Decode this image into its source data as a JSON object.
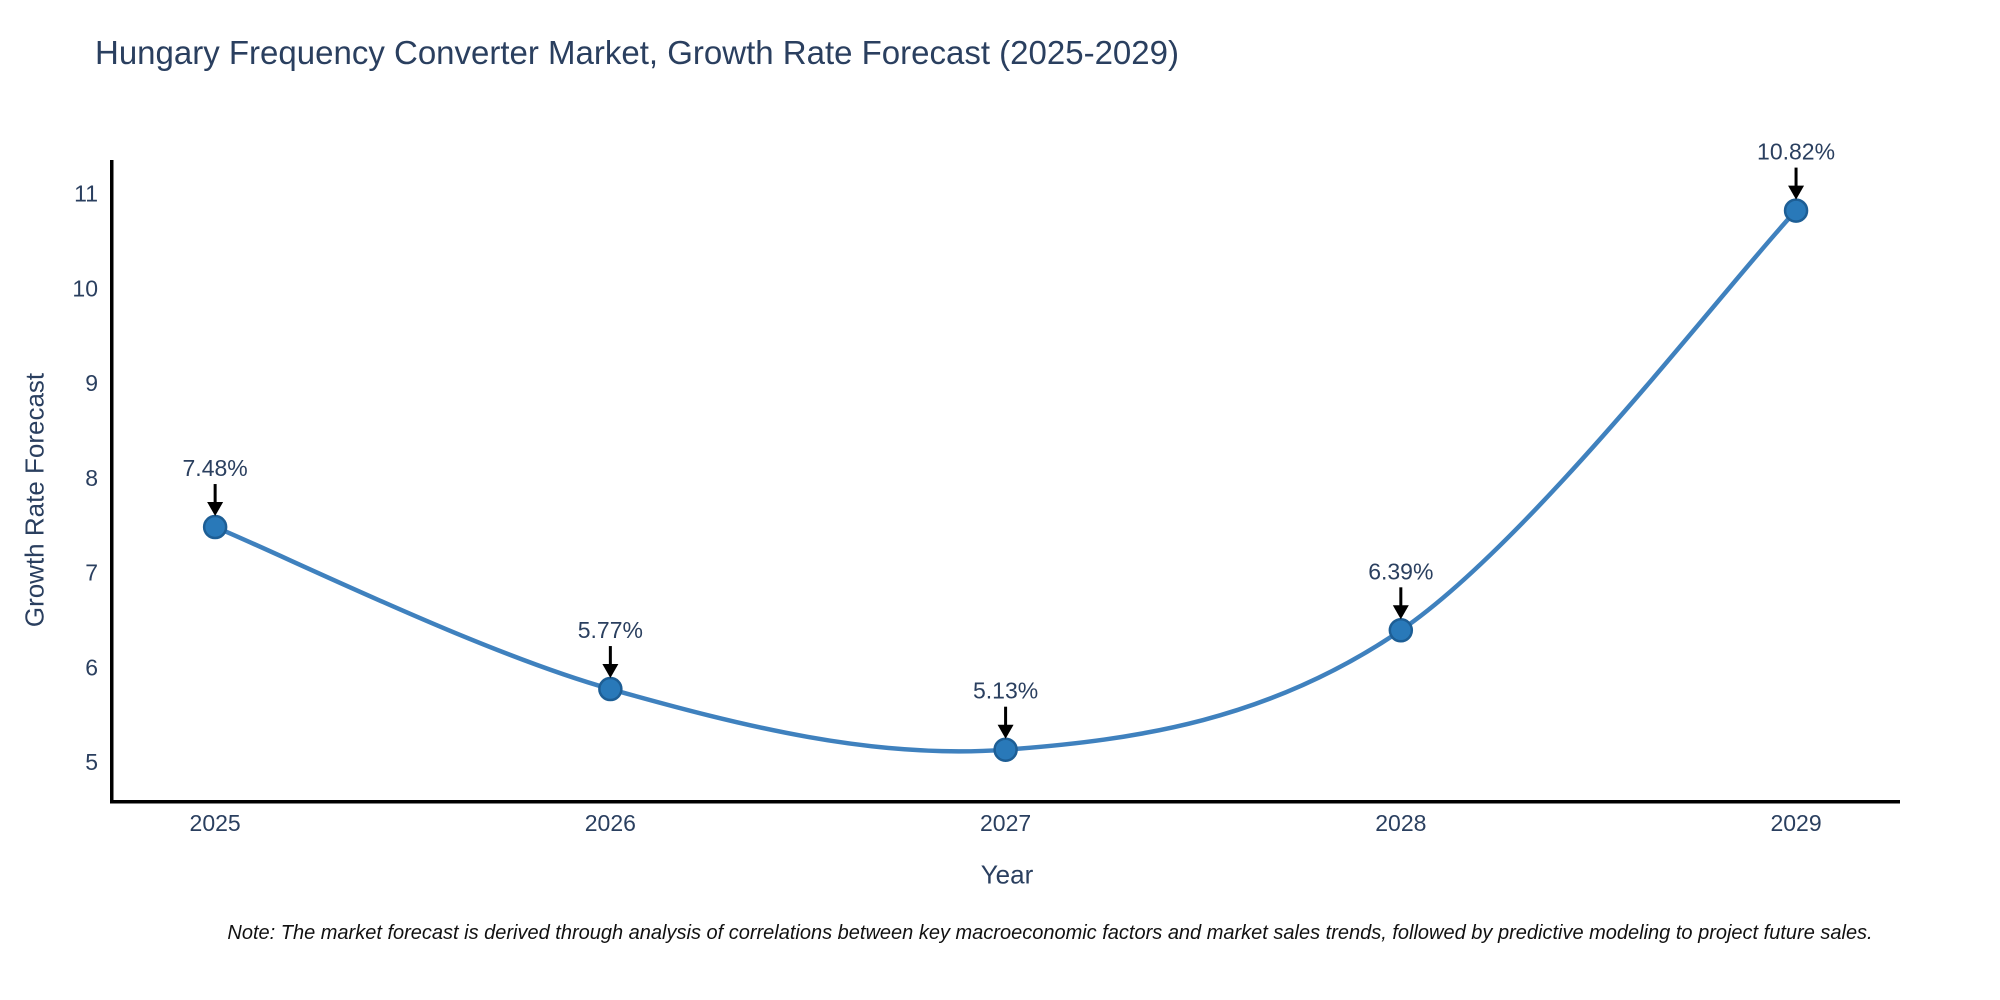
{
  "page": {
    "background": "#ffffff"
  },
  "chart_data": {
    "type": "line",
    "title": "Hungary Frequency Converter Market, Growth Rate Forecast (2025-2029)",
    "xlabel": "Year",
    "ylabel": "Growth Rate Forecast",
    "x": [
      2025,
      2026,
      2027,
      2028,
      2029
    ],
    "series": [
      {
        "name": "Growth Rate Forecast",
        "values": [
          7.48,
          5.77,
          5.13,
          6.39,
          10.82
        ]
      }
    ],
    "point_labels": [
      "7.48%",
      "5.77%",
      "5.13%",
      "6.39%",
      "10.82%"
    ],
    "yticks": [
      5,
      6,
      7,
      8,
      9,
      10,
      11
    ],
    "xticks": [
      "2025",
      "2026",
      "2027",
      "2028",
      "2029"
    ],
    "ylim": [
      4.599,
      11.354
    ],
    "xlim": [
      2024.734,
      2029.263
    ],
    "grid": false,
    "legend": null,
    "line_shape": "spline",
    "note": "Note: The market forecast is derived through analysis of correlations between key macroeconomic factors and market sales trends, followed by predictive modeling to project future sales.",
    "colors": {
      "line": "#3f81be",
      "marker_fill": "#2979b9",
      "marker_edge": "#1d5e95",
      "axis_line": "#000000",
      "tick_text": "#2a3f5f",
      "annotation_text": "#2a3f5f",
      "annotation_arrow": "#000000",
      "title_text": "#2a3f5f",
      "note_text": "#111111",
      "background": "#ffffff"
    }
  }
}
